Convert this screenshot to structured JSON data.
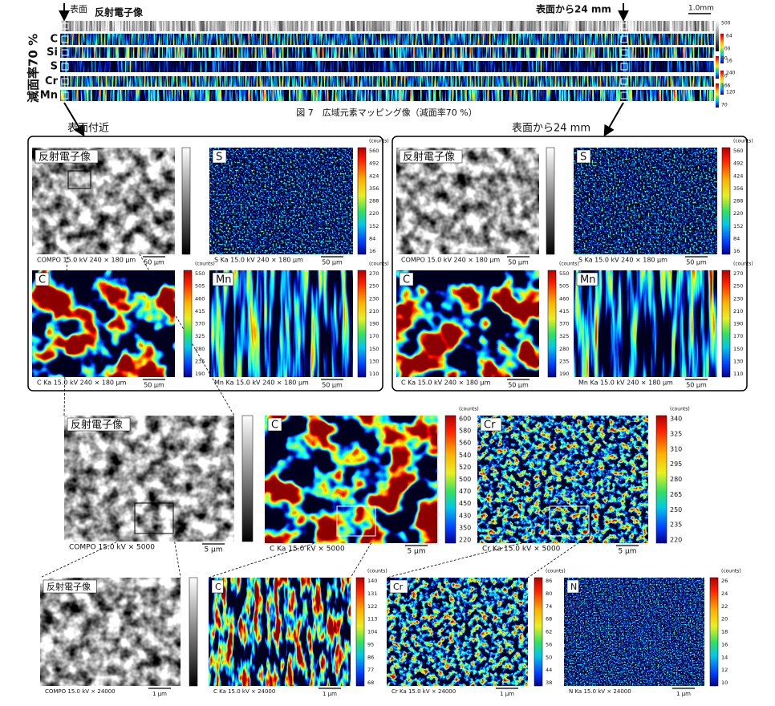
{
  "overview": {
    "surface_label": "表面",
    "bse_label": "反射電子像",
    "depth_label": "表面から24 mm",
    "scale_bar": "1.0mm",
    "reduction_label": "減面率70 %",
    "elements": [
      "C",
      "Si",
      "S",
      "Cr",
      "Mn"
    ],
    "colorbars": [
      [
        500,
        100
      ],
      [
        64,
        16
      ],
      [
        90,
        10
      ],
      [
        240,
        120
      ],
      [
        166,
        70
      ]
    ],
    "caption": "図 7　広域元素マッピング像（減面率70 %）"
  },
  "zoom_labels": [
    "表面付近",
    "表面から24 mm"
  ],
  "groups": [
    {
      "panels": [
        {
          "label": "反射電子像",
          "caption": "COMPO 15.0 kV 240 × 180 µm",
          "scale_bar": "50 µm"
        },
        {
          "label": "S",
          "caption": "S Ka 15.0 kV 240 × 180 µm",
          "scale_bar": "50 µm",
          "unit": "(counts)",
          "ticks": [
            560,
            492,
            424,
            356,
            288,
            220,
            152,
            84,
            16
          ]
        },
        {
          "label": "C",
          "caption": "C Ka 15.0 kV 240 × 180 µm",
          "scale_bar": "50 µm",
          "unit": "(counts)",
          "ticks": [
            550,
            505,
            460,
            415,
            370,
            325,
            280,
            235,
            190
          ]
        },
        {
          "label": "Mn",
          "caption": "Mn Ka 15.0 kV 240 × 180 µm",
          "scale_bar": "50 µm",
          "unit": "(counts)",
          "ticks": [
            270,
            250,
            230,
            210,
            190,
            170,
            150,
            130,
            110
          ]
        }
      ]
    },
    {
      "panels": [
        {
          "label": "反射電子像",
          "caption": "COMPO 15.0 kV 240 × 180 µm",
          "scale_bar": "50 µm"
        },
        {
          "label": "S",
          "caption": "S Ka 15.0 kV 240 × 180 µm",
          "scale_bar": "50 µm",
          "unit": "(counts)",
          "ticks": [
            560,
            492,
            424,
            356,
            288,
            220,
            152,
            84,
            16
          ]
        },
        {
          "label": "C",
          "caption": "C Ka 15.0 kV 240 × 180 µm",
          "scale_bar": "50 µm",
          "unit": "(counts)",
          "ticks": [
            550,
            505,
            460,
            415,
            370,
            325,
            280,
            235,
            190
          ]
        },
        {
          "label": "Mn",
          "caption": "Mn Ka 15.0 kV 240 × 180 µm",
          "scale_bar": "50 µm",
          "unit": "(counts)",
          "ticks": [
            270,
            250,
            230,
            210,
            190,
            170,
            150,
            130,
            110
          ]
        }
      ]
    },
    {
      "panels": [
        {
          "label": "反射電子像",
          "caption": "COMPO 15.0 kV × 5000",
          "scale_bar": "5 µm"
        },
        {
          "label": "C",
          "caption": "C Ka 15.0 kV × 5000",
          "scale_bar": "5 µm",
          "unit": "(counts)",
          "ticks": [
            600,
            580,
            560,
            540,
            520,
            500,
            470,
            450,
            430,
            350,
            220
          ]
        },
        {
          "label": "Cr",
          "caption": "Cr Ka 15.0 kV × 5000",
          "scale_bar": "5 µm",
          "unit": "(counts)",
          "ticks": [
            340,
            325,
            310,
            295,
            280,
            265,
            250,
            235,
            220
          ]
        }
      ]
    },
    {
      "panels": [
        {
          "label": "反射電子像",
          "caption": "COMPO 15.0 kV × 24000",
          "scale_bar": "1 µm"
        },
        {
          "label": "C",
          "caption": "C Ka 15.0 kV × 24000",
          "scale_bar": "1 µm",
          "unit": "(counts)",
          "ticks": [
            140,
            131,
            122,
            113,
            104,
            95,
            86,
            77,
            68
          ]
        },
        {
          "label": "Cr",
          "caption": "Cr Ka 15.0 kV × 24000",
          "scale_bar": "1 µm",
          "unit": "(counts)",
          "ticks": [
            86,
            80,
            74,
            68,
            62,
            56,
            50,
            44,
            38
          ]
        },
        {
          "label": "N",
          "caption": "N Ka 15.0 kV × 24000",
          "scale_bar": "1 µm",
          "unit": "(counts)",
          "ticks": [
            26,
            24,
            22,
            20,
            18,
            16,
            14,
            12,
            10
          ]
        }
      ]
    }
  ]
}
